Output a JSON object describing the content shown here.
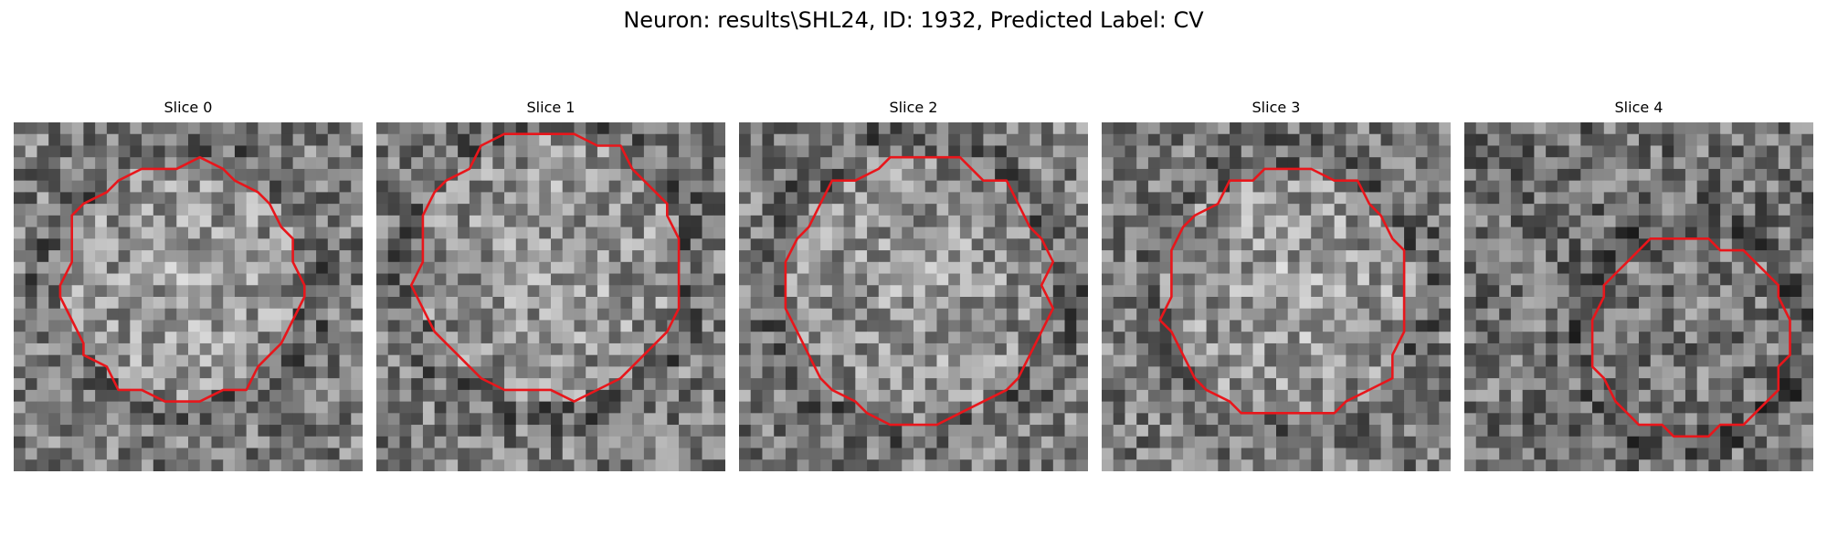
{
  "figure": {
    "title": "Neuron: results\\SHL24, ID: 1932, Predicted Label: CV"
  },
  "colors": {
    "contour": "#e8161b",
    "background": "#ffffff"
  },
  "panels": [
    {
      "title": "Slice 0"
    },
    {
      "title": "Slice 1"
    },
    {
      "title": "Slice 2"
    },
    {
      "title": "Slice 3"
    },
    {
      "title": "Slice 4"
    }
  ]
}
